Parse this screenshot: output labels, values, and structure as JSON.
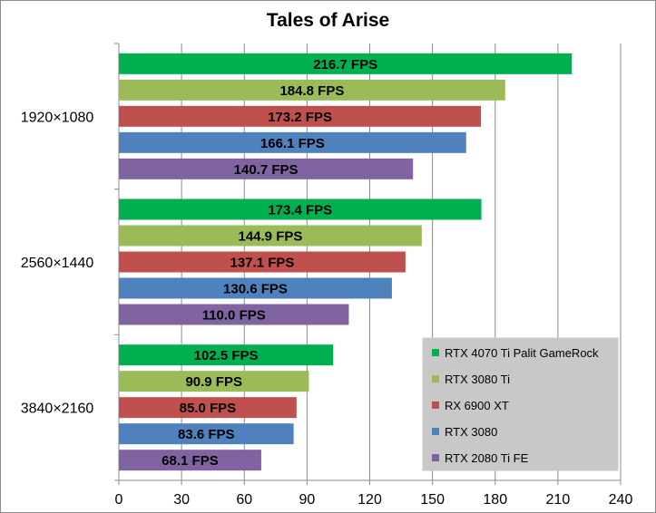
{
  "chart_data": {
    "type": "bar",
    "orientation": "horizontal",
    "title": "Tales of Arise",
    "categories": [
      "1920×1080",
      "2560×1440",
      "3840×2160"
    ],
    "series": [
      {
        "name": "RTX 4070 Ti Palit GameRock",
        "color": "#00b050",
        "values": [
          216.7,
          173.4,
          102.5
        ],
        "labels": [
          "216.7 FPS",
          "173.4 FPS",
          "102.5 FPS"
        ]
      },
      {
        "name": "RTX 3080 Ti",
        "color": "#9bbb59",
        "values": [
          184.8,
          144.9,
          90.9
        ],
        "labels": [
          "184.8 FPS",
          "144.9 FPS",
          "90.9 FPS"
        ]
      },
      {
        "name": "RX 6900 XT",
        "color": "#c0504d",
        "values": [
          173.2,
          137.1,
          85.0
        ],
        "labels": [
          "173.2 FPS",
          "137.1 FPS",
          "85.0 FPS"
        ]
      },
      {
        "name": "RTX 3080",
        "color": "#4f81bd",
        "values": [
          166.1,
          130.6,
          83.6
        ],
        "labels": [
          "166.1 FPS",
          "130.6 FPS",
          "83.6 FPS"
        ]
      },
      {
        "name": "RTX 2080 Ti FE",
        "color": "#8064a2",
        "values": [
          140.7,
          110.0,
          68.1
        ],
        "labels": [
          "140.7 FPS",
          "110.0 FPS",
          "68.1 FPS"
        ]
      }
    ],
    "xlim": [
      0,
      240
    ],
    "xticks": [
      0,
      30,
      60,
      90,
      120,
      150,
      180,
      210,
      240
    ],
    "xtick_labels": [
      "0",
      "30",
      "60",
      "90",
      "120",
      "150",
      "180",
      "210",
      "240"
    ],
    "grid": "vertical",
    "legend_position": "bottom-right"
  }
}
